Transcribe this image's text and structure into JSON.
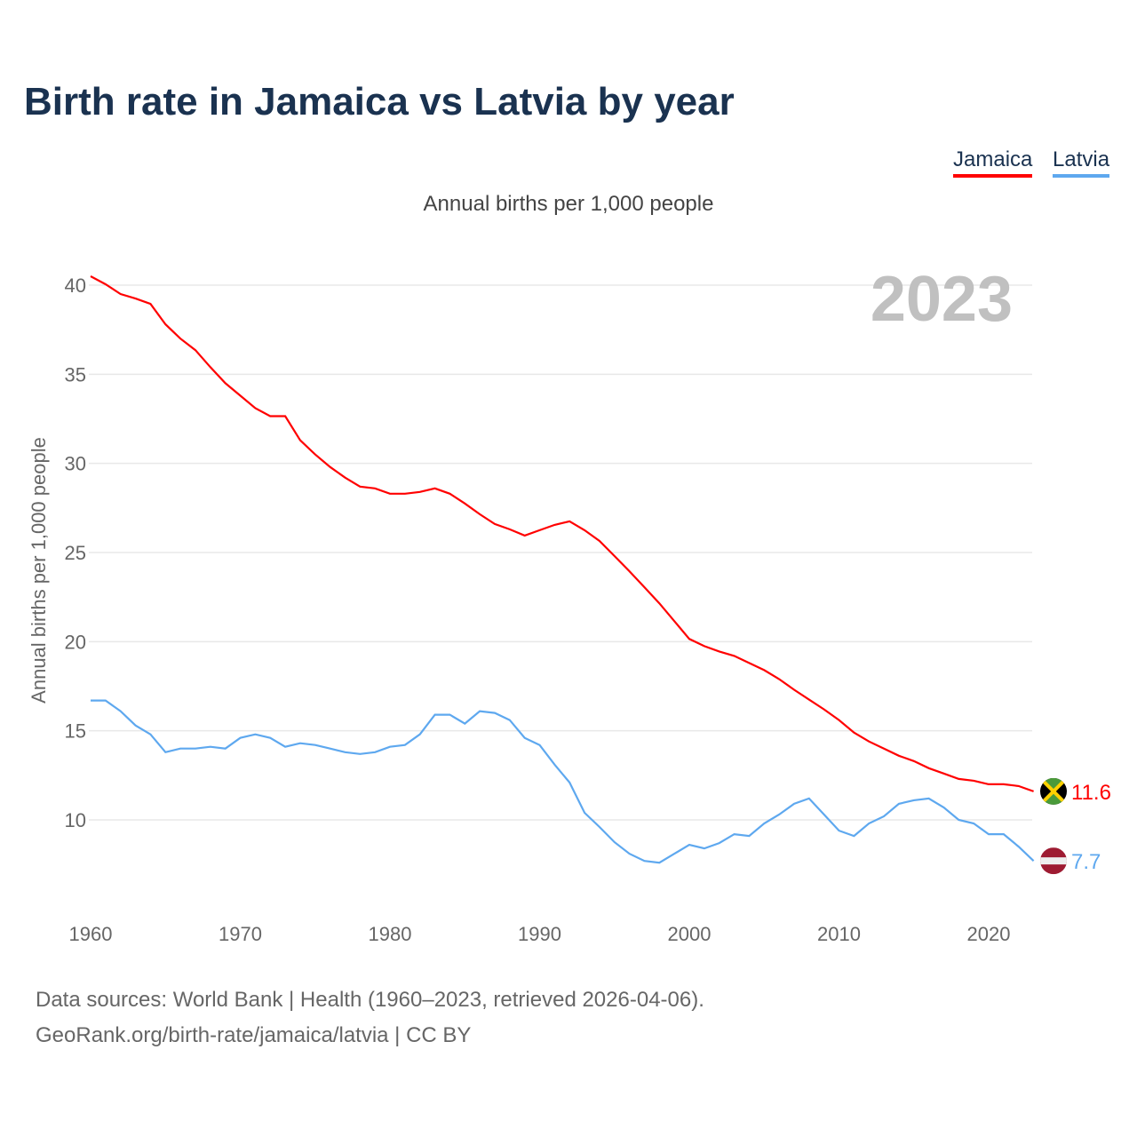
{
  "chart_data": {
    "type": "line",
    "title": "Birth rate in Jamaica vs Latvia by year",
    "subtitle": "Annual births per 1,000 people",
    "ylabel": "Annual births per 1,000 people",
    "xlabel": "",
    "year_label": "2023",
    "xlim": [
      1960,
      2023
    ],
    "ylim": [
      5,
      42
    ],
    "yticks": [
      10,
      15,
      20,
      25,
      30,
      35,
      40
    ],
    "xticks": [
      1960,
      1970,
      1980,
      1990,
      2000,
      2010,
      2020
    ],
    "grid": true,
    "legend_position": "top-right",
    "x_start": 1960,
    "series": [
      {
        "name": "Jamaica",
        "color": "#ff0000",
        "end_label": "11.6",
        "flag": "jamaica-flag",
        "values": [
          40.5,
          40.05,
          39.5,
          39.25,
          38.95,
          37.8,
          37.0,
          36.35,
          35.4,
          34.5,
          33.8,
          33.1,
          32.65,
          32.65,
          31.3,
          30.5,
          29.8,
          29.2,
          28.7,
          28.6,
          28.3,
          28.3,
          28.4,
          28.6,
          28.3,
          27.75,
          27.15,
          26.6,
          26.3,
          25.95,
          26.25,
          26.55,
          26.75,
          26.25,
          25.65,
          24.8,
          23.95,
          23.05,
          22.15,
          21.15,
          20.15,
          19.75,
          19.45,
          19.2,
          18.8,
          18.4,
          17.9,
          17.3,
          16.75,
          16.2,
          15.6,
          14.9,
          14.4,
          14.0,
          13.6,
          13.3,
          12.9,
          12.6,
          12.3,
          12.2,
          12.0,
          12.0,
          11.9,
          11.6
        ]
      },
      {
        "name": "Latvia",
        "color": "#5ea8ef",
        "end_label": "7.7",
        "flag": "latvia-flag",
        "values": [
          16.7,
          16.7,
          16.1,
          15.3,
          14.8,
          13.8,
          14.0,
          14.0,
          14.1,
          14.0,
          14.6,
          14.8,
          14.6,
          14.1,
          14.3,
          14.2,
          14.0,
          13.8,
          13.7,
          13.8,
          14.1,
          14.2,
          14.8,
          15.9,
          15.9,
          15.4,
          16.1,
          16.0,
          15.6,
          14.6,
          14.2,
          13.1,
          12.1,
          10.4,
          9.6,
          8.75,
          8.1,
          7.7,
          7.6,
          8.1,
          8.6,
          8.4,
          8.7,
          9.2,
          9.1,
          9.8,
          10.3,
          10.9,
          11.2,
          10.3,
          9.4,
          9.1,
          9.8,
          10.2,
          10.9,
          11.1,
          11.2,
          10.7,
          10.0,
          9.8,
          9.2,
          9.2,
          8.5,
          7.7
        ]
      }
    ]
  },
  "footer": {
    "line1": "Data sources: World Bank | Health (1960–2023, retrieved 2026-04-06).",
    "line2": "GeoRank.org/birth-rate/jamaica/latvia | CC BY"
  }
}
